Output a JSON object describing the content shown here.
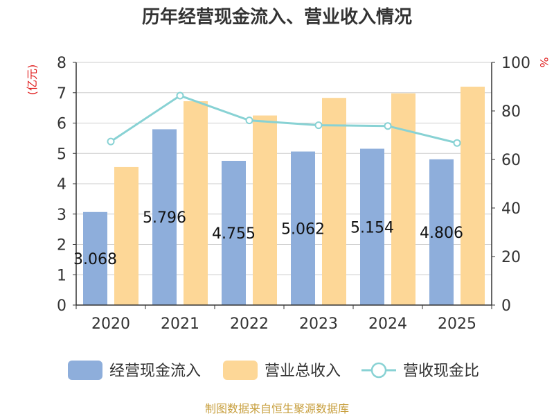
{
  "chart_data": {
    "type": "bar",
    "title": "历年经营现金流入、营业收入情况",
    "categories": [
      "2020",
      "2021",
      "2022",
      "2023",
      "2024",
      "2025"
    ],
    "series": [
      {
        "name": "经营现金流入",
        "kind": "bar",
        "axis": "left",
        "values": [
          3.068,
          5.796,
          4.755,
          5.062,
          5.154,
          4.806
        ],
        "labels": [
          "3.068",
          "5.796",
          "4.755",
          "5.062",
          "5.154",
          "4.806"
        ],
        "color": "#8eaedb"
      },
      {
        "name": "营业总收入",
        "kind": "bar",
        "axis": "left",
        "values": [
          4.55,
          6.72,
          6.25,
          6.83,
          6.98,
          7.2
        ],
        "color": "#fdd797"
      },
      {
        "name": "营收现金比",
        "kind": "line",
        "axis": "right",
        "values": [
          67.4,
          86.3,
          76.1,
          74.1,
          73.8,
          66.8
        ],
        "color": "#88d2d4"
      }
    ],
    "yaxis_left": {
      "label": "(亿元)",
      "min": 0,
      "max": 8,
      "ticks": [
        "0",
        "1",
        "2",
        "3",
        "4",
        "5",
        "6",
        "7",
        "8"
      ]
    },
    "yaxis_right": {
      "label": "%",
      "min": 0,
      "max": 100,
      "ticks": [
        "0",
        "20",
        "40",
        "60",
        "80",
        "100"
      ]
    },
    "grid": true,
    "legend_position": "bottom"
  },
  "footer": {
    "source": "制图数据来自恒生聚源数据库"
  }
}
